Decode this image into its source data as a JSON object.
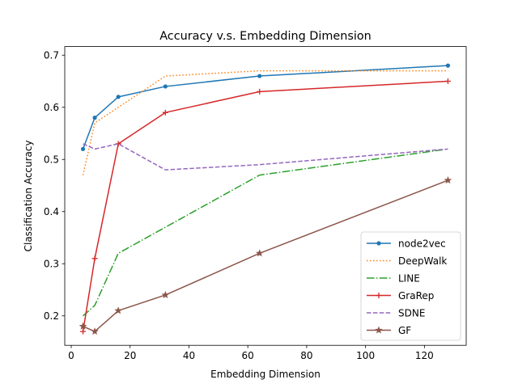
{
  "chart_data": {
    "type": "line",
    "title": "Accuracy v.s. Embedding Dimension",
    "xlabel": "Embedding Dimension",
    "ylabel": "Classification Accuracy",
    "xlim": [
      -2.2,
      134.2
    ],
    "ylim": [
      0.1435,
      0.7165
    ],
    "xticks": [
      0,
      20,
      40,
      60,
      80,
      100,
      120
    ],
    "yticks": [
      0.2,
      0.3,
      0.4,
      0.5,
      0.6,
      0.7
    ],
    "yticklabels": [
      "0.2",
      "0.3",
      "0.4",
      "0.5",
      "0.6",
      "0.7"
    ],
    "grid": false,
    "legend_position": "lower-right",
    "x": [
      4,
      8,
      16,
      32,
      64,
      128
    ],
    "series": [
      {
        "name": "node2vec",
        "values": [
          0.52,
          0.58,
          0.62,
          0.64,
          0.66,
          0.68
        ],
        "color": "#1f77b4",
        "linestyle": "solid",
        "marker": "dot"
      },
      {
        "name": "DeepWalk",
        "values": [
          0.47,
          0.57,
          0.6,
          0.66,
          0.67,
          0.67
        ],
        "color": "#ff7f0e",
        "linestyle": "dotted",
        "marker": "none"
      },
      {
        "name": "LINE",
        "values": [
          0.2,
          0.22,
          0.32,
          0.37,
          0.47,
          0.52
        ],
        "color": "#2ca02c",
        "linestyle": "dashdot",
        "marker": "none"
      },
      {
        "name": "GraRep",
        "values": [
          0.17,
          0.31,
          0.53,
          0.59,
          0.63,
          0.65
        ],
        "color": "#d62728",
        "linestyle": "solid",
        "marker": "plus"
      },
      {
        "name": "SDNE",
        "values": [
          0.53,
          0.52,
          0.53,
          0.48,
          0.49,
          0.52
        ],
        "color": "#9467bd",
        "linestyle": "dashed",
        "marker": "none"
      },
      {
        "name": "GF",
        "values": [
          0.18,
          0.17,
          0.21,
          0.24,
          0.32,
          0.46
        ],
        "color": "#8c564b",
        "linestyle": "solid",
        "marker": "star"
      }
    ]
  }
}
